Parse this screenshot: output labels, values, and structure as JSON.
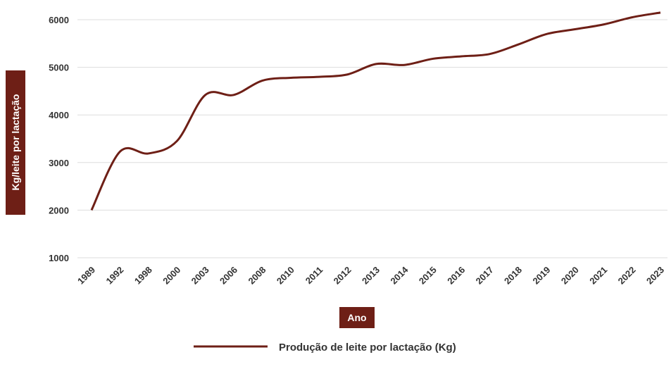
{
  "chart_data": {
    "type": "line",
    "x_label": "Ano",
    "y_label": "Kg/leite por lactação",
    "categories": [
      "1989",
      "1992",
      "1998",
      "2000",
      "2003",
      "2006",
      "2008",
      "2010",
      "2011",
      "2012",
      "2013",
      "2014",
      "2015",
      "2016",
      "2017",
      "2018",
      "2019",
      "2020",
      "2021",
      "2022",
      "2023"
    ],
    "series": [
      {
        "name": "Produção de leite por lactação (Kg)",
        "color": "#6e1f16",
        "values": [
          2000,
          3230,
          3190,
          3450,
          4420,
          4420,
          4720,
          4780,
          4800,
          4850,
          5070,
          5050,
          5180,
          5230,
          5280,
          5480,
          5700,
          5800,
          5900,
          6050,
          6150
        ]
      }
    ],
    "ylim": [
      1000,
      6000
    ],
    "yticks": [
      1000,
      2000,
      3000,
      4000,
      5000,
      6000
    ],
    "grid": true,
    "legend": "bottom"
  }
}
